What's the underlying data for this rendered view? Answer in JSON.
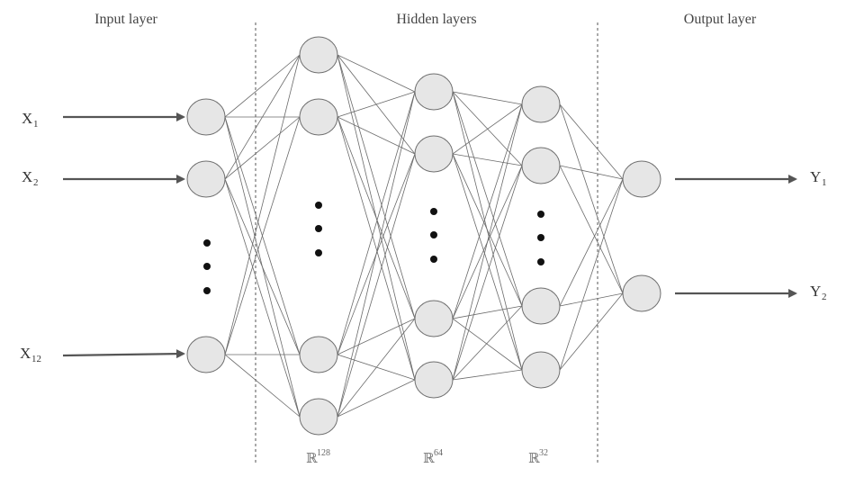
{
  "sections": {
    "input": "Input layer",
    "hidden": "Hidden layers",
    "output": "Output layer"
  },
  "inputs": [
    {
      "base": "X",
      "sub": "1"
    },
    {
      "base": "X",
      "sub": "2"
    },
    {
      "base": "X",
      "sub": "12"
    }
  ],
  "outputs": [
    {
      "base": "Y",
      "sub": "1"
    },
    {
      "base": "Y",
      "sub": "2"
    }
  ],
  "hidden_dims": [
    {
      "base": "ℝ",
      "sup": "128"
    },
    {
      "base": "ℝ",
      "sup": "64"
    },
    {
      "base": "ℝ",
      "sup": "32"
    }
  ],
  "colors": {
    "node_fill": "#e6e6e6",
    "node_stroke": "#6f6f6f",
    "edge": "#6a6a6a",
    "arrow": "#555555"
  }
}
